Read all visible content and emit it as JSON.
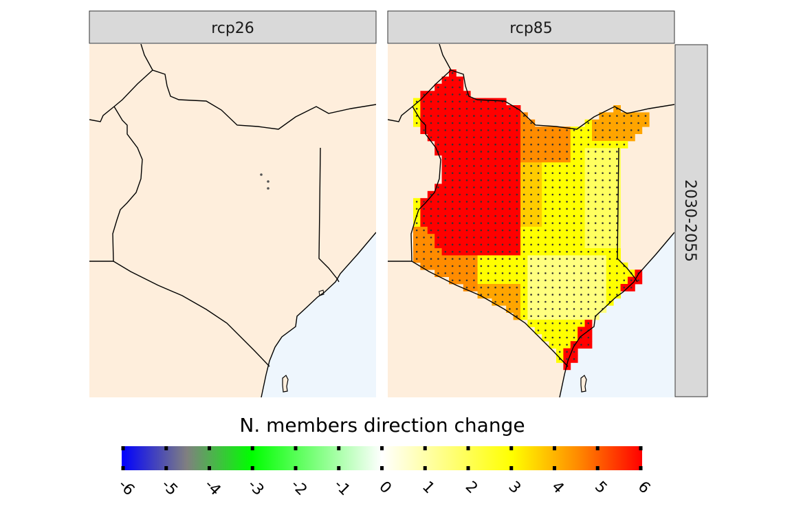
{
  "panels": [
    {
      "label": "rcp26"
    },
    {
      "label": "rcp85"
    }
  ],
  "row_label": "2030-2055",
  "legend": {
    "title": "N. members direction change",
    "ticks": [
      "-6",
      "-5",
      "-4",
      "-3",
      "-2",
      "-1",
      "0",
      "1",
      "2",
      "3",
      "4",
      "5",
      "6"
    ],
    "range": [
      -6,
      6
    ],
    "color_stops": [
      {
        "value": -6,
        "color": "#0000ff"
      },
      {
        "value": -4.5,
        "color": "#808080"
      },
      {
        "value": -3,
        "color": "#00ff00"
      },
      {
        "value": 0,
        "color": "#ffffff"
      },
      {
        "value": 3,
        "color": "#ffff00"
      },
      {
        "value": 4.5,
        "color": "#ff8c00"
      },
      {
        "value": 6,
        "color": "#ff0000"
      }
    ]
  },
  "colors": {
    "land": "#feeedc",
    "sea": "#eef6fd",
    "strip": "#d9d9d9",
    "border": "#000000"
  }
}
